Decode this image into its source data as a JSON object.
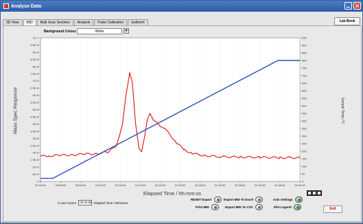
{
  "window": {
    "title": "Analyse Data"
  },
  "tabs": [
    "3D View",
    "MID",
    "Bulk Scan Sections",
    "Analysis",
    "Pulse Calibration",
    "Isotherm"
  ],
  "active_tab": 1,
  "lab_book_label": "Lab Book",
  "background_colour": {
    "label": "Background Colour",
    "value": "White"
  },
  "axes": {
    "left_label": "Mass Spec Response",
    "right_label": "Sample Temp /°C",
    "x_label": "Elapsed Time / hh:mm:ss"
  },
  "cursor": {
    "label": "X Axis Cursor",
    "value": "00:34:56",
    "unit_label": "Elapsed Time / Mmmsss"
  },
  "controls": {
    "reset_export": "RESET Export",
    "print_mid": "Print MID",
    "export_mid_excel": "Export MID To Excel",
    "export_mid_csv": "Export MID To CSV",
    "axis_settings": "Axis Settings",
    "plot_legend": "Plot Legend"
  },
  "exit_label": "Exit",
  "colors": {
    "ms_trace": "#e02020",
    "temp_trace": "#2b4fb8",
    "title_bar": "#2e5ea8"
  },
  "chart_data": {
    "type": "line",
    "left_ticks": [
      "1E-7",
      "9.5E-8",
      "9E-8",
      "8.5E-8",
      "8E-8",
      "7.5E-8",
      "7E-8",
      "6.5E-8",
      "6E-8",
      "5.5E-8",
      "5E-8",
      "4.5E-8",
      "4E-8",
      "3.5E-8",
      "3E-8",
      "2.5E-8",
      "2E-8",
      "1.5E-8",
      "1E-8",
      "5E-9",
      "0"
    ],
    "right_ticks": [
      "950",
      "900",
      "850",
      "800",
      "750",
      "700",
      "650",
      "600",
      "550",
      "500",
      "450",
      "400",
      "350",
      "300",
      "250",
      "200",
      "150",
      "100",
      "50",
      "0"
    ],
    "x_ticks": [
      "00:44:56",
      "00:50:00",
      "00:55:00",
      "01:00:00",
      "01:05:00",
      "01:10:00",
      "01:15:00",
      "01:20:00",
      "01:25:00",
      "01:30:00",
      "01:35:00",
      "01:40:00",
      "01:45:00",
      "01:50:00"
    ],
    "ylim_left": [
      0,
      1e-07
    ],
    "ylim_right": [
      0,
      950
    ],
    "xlim_min": [
      44.93,
      110
    ],
    "series": [
      {
        "axis": "left",
        "color": "#e02020",
        "x": [
          44.93,
          47,
          50,
          53,
          56,
          59,
          62,
          64,
          65.5,
          66.5,
          67.3,
          68,
          68.8,
          69.6,
          70.3,
          71,
          71.7,
          72.4,
          73.3,
          74.3,
          75.5,
          77,
          79,
          81,
          83,
          86,
          90,
          95,
          100,
          105,
          110
        ],
        "y": [
          1.75e-08,
          1.78e-08,
          1.82e-08,
          1.85e-08,
          1.9e-08,
          1.93e-08,
          2.05e-08,
          2.5e-08,
          4e-08,
          6.2e-08,
          7.6e-08,
          6.8e-08,
          4e-08,
          2.3e-08,
          2.1e-08,
          3e-08,
          4.3e-08,
          4.7e-08,
          4.3e-08,
          4e-08,
          3.8e-08,
          3.4e-08,
          2.7e-08,
          2.2e-08,
          1.95e-08,
          1.8e-08,
          1.72e-08,
          1.7e-08,
          1.68e-08,
          1.65e-08,
          1.65e-08
        ]
      },
      {
        "axis": "right",
        "color": "#2b4fb8",
        "x": [
          44.93,
          48,
          104.5,
          110
        ],
        "y": [
          20,
          20,
          800,
          800
        ]
      }
    ]
  }
}
